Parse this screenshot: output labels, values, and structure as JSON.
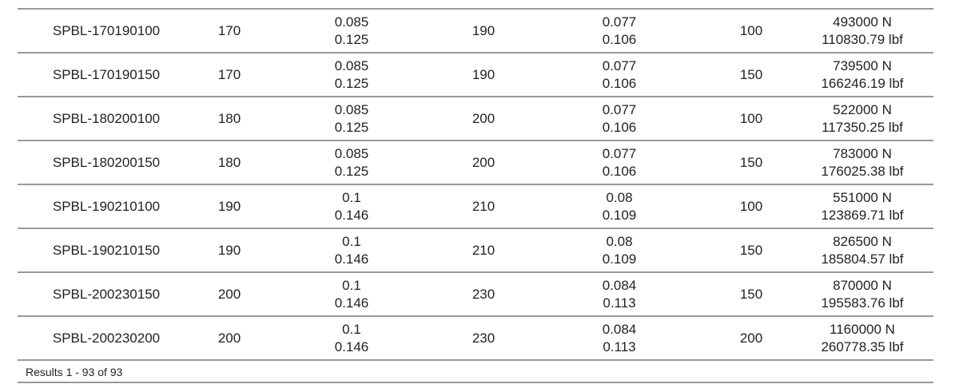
{
  "table": {
    "rows": [
      [
        "SPBL-170190100",
        "170",
        [
          "0.085",
          "0.125"
        ],
        "190",
        [
          "0.077",
          "0.106"
        ],
        "100",
        [
          "493000 N",
          "110830.79 lbf"
        ]
      ],
      [
        "SPBL-170190150",
        "170",
        [
          "0.085",
          "0.125"
        ],
        "190",
        [
          "0.077",
          "0.106"
        ],
        "150",
        [
          "739500 N",
          "166246.19 lbf"
        ]
      ],
      [
        "SPBL-180200100",
        "180",
        [
          "0.085",
          "0.125"
        ],
        "200",
        [
          "0.077",
          "0.106"
        ],
        "100",
        [
          "522000 N",
          "117350.25 lbf"
        ]
      ],
      [
        "SPBL-180200150",
        "180",
        [
          "0.085",
          "0.125"
        ],
        "200",
        [
          "0.077",
          "0.106"
        ],
        "150",
        [
          "783000 N",
          "176025.38 lbf"
        ]
      ],
      [
        "SPBL-190210100",
        "190",
        [
          "0.1",
          "0.146"
        ],
        "210",
        [
          "0.08",
          "0.109"
        ],
        "100",
        [
          "551000 N",
          "123869.71 lbf"
        ]
      ],
      [
        "SPBL-190210150",
        "190",
        [
          "0.1",
          "0.146"
        ],
        "210",
        [
          "0.08",
          "0.109"
        ],
        "150",
        [
          "826500 N",
          "185804.57 lbf"
        ]
      ],
      [
        "SPBL-200230150",
        "200",
        [
          "0.1",
          "0.146"
        ],
        "230",
        [
          "0.084",
          "0.113"
        ],
        "150",
        [
          "870000 N",
          "195583.76 lbf"
        ]
      ],
      [
        "SPBL-200230200",
        "200",
        [
          "0.1",
          "0.146"
        ],
        "230",
        [
          "0.084",
          "0.113"
        ],
        "200",
        [
          "1160000 N",
          "260778.35 lbf"
        ]
      ]
    ],
    "footer": "Results 1 - 93 of 93"
  }
}
